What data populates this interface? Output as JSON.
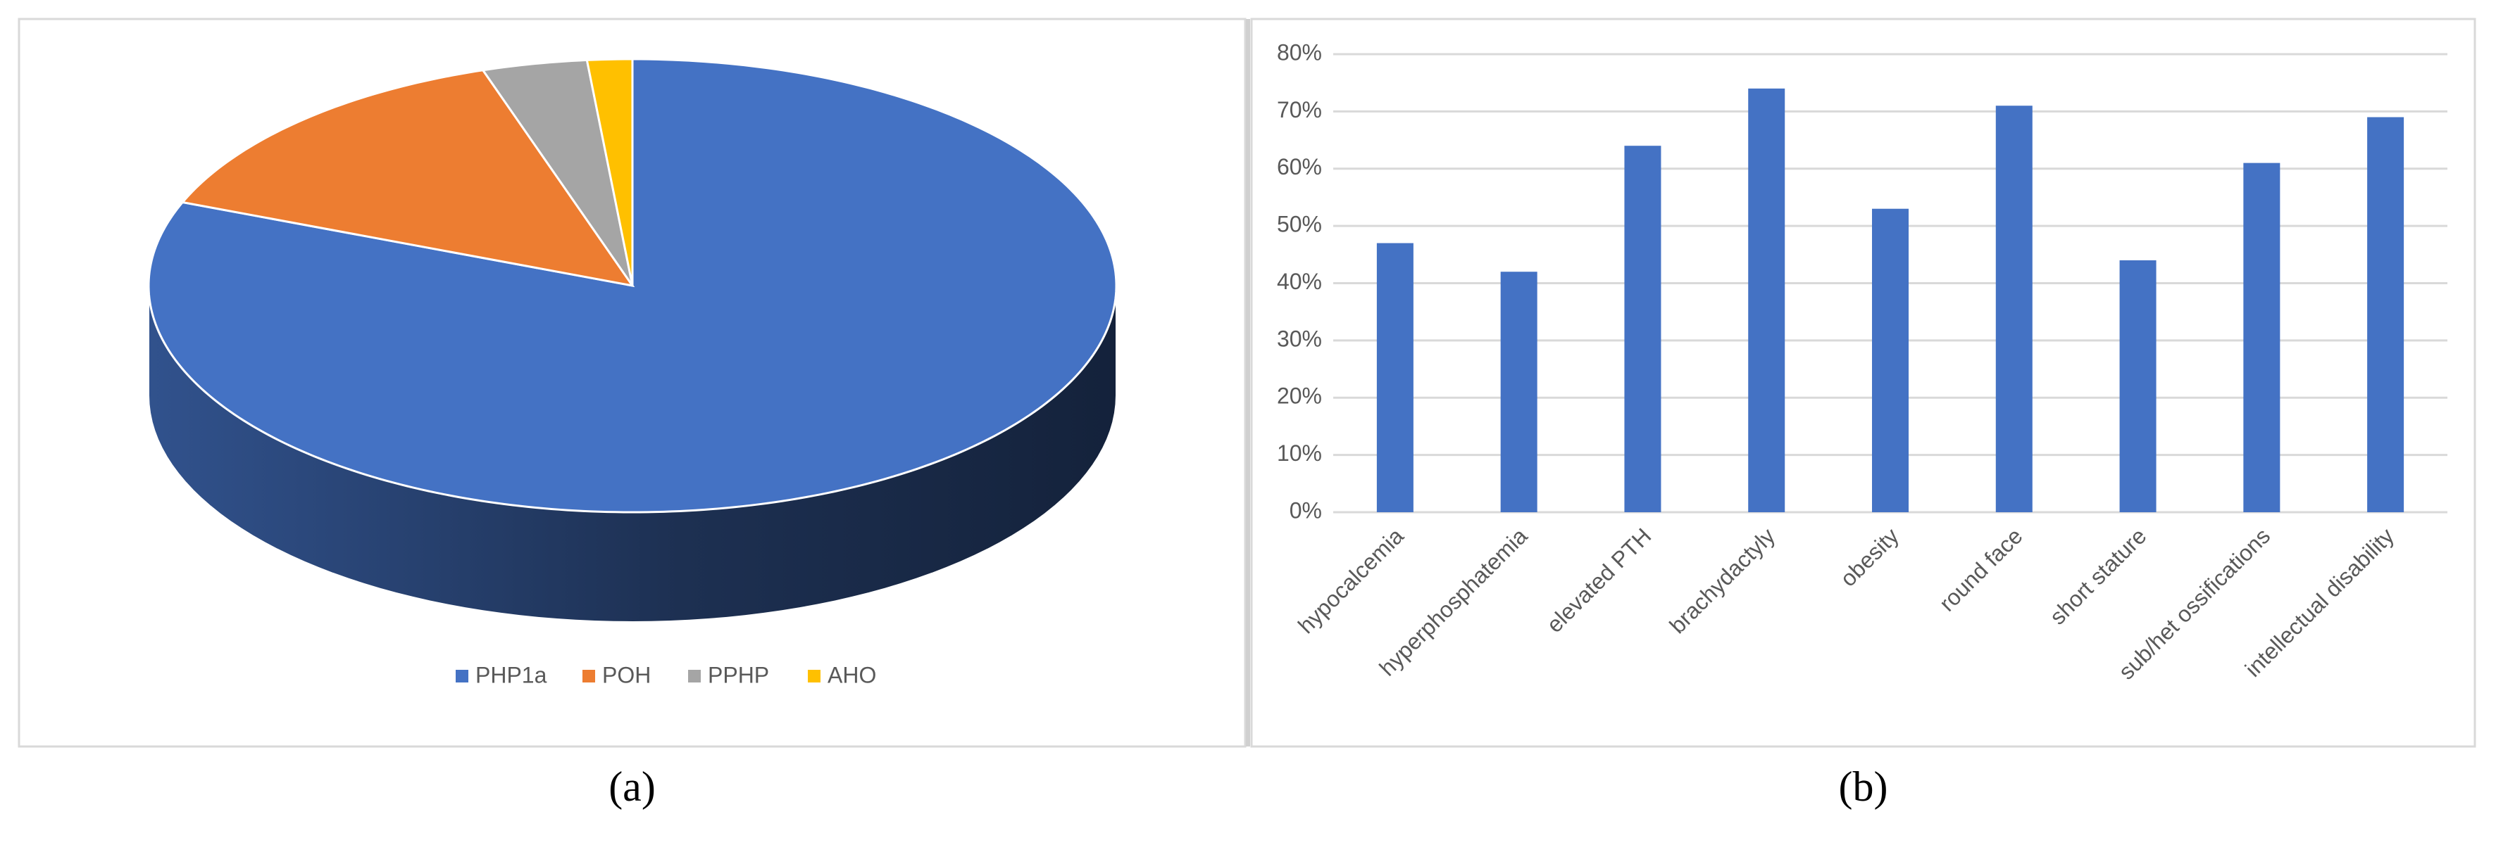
{
  "chart_data": [
    {
      "type": "pie",
      "panel_label": "(a)",
      "categories": [
        "PHP1a",
        "POH",
        "PPHP",
        "AHO"
      ],
      "values": [
        81,
        14,
        3.5,
        1.5
      ],
      "colors": [
        "#4472c4",
        "#ed7d31",
        "#a5a5a5",
        "#ffc000"
      ],
      "legend": "bottom"
    },
    {
      "type": "bar",
      "panel_label": "(b)",
      "categories": [
        "hypocalcemia",
        "hyperphosphatemia",
        "elevated PTH",
        "brachydactyly",
        "obesity",
        "round face",
        "short stature",
        "sub/het ossifications",
        "intellectual disability"
      ],
      "values": [
        47,
        42,
        64,
        74,
        53,
        71,
        44,
        61,
        69
      ],
      "color": "#4472c4",
      "ylim": [
        0,
        80
      ],
      "yticks": [
        {
          "value": 0,
          "label": "0%"
        },
        {
          "value": 10,
          "label": "10%"
        },
        {
          "value": 20,
          "label": "20%"
        },
        {
          "value": 30,
          "label": "30%"
        },
        {
          "value": 40,
          "label": "40%"
        },
        {
          "value": 50,
          "label": "50%"
        },
        {
          "value": 60,
          "label": "60%"
        },
        {
          "value": 70,
          "label": "70%"
        },
        {
          "value": 80,
          "label": "80%"
        }
      ],
      "grid": true
    }
  ]
}
